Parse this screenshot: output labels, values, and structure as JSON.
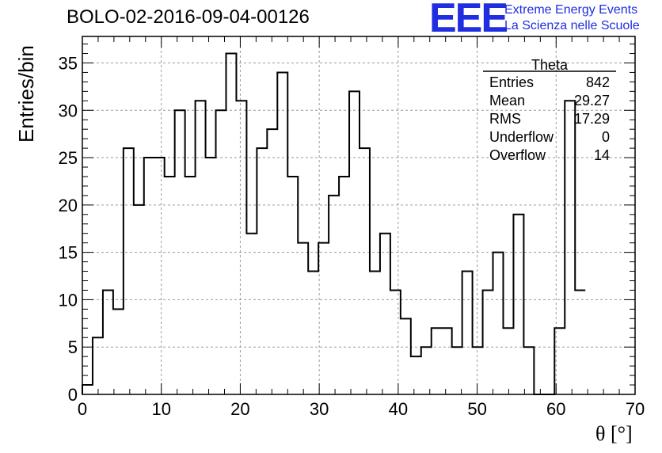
{
  "header": {
    "title": "BOLO-02-2016-09-04-00126",
    "logo_text": "EEE",
    "logo_line1": "Extreme Energy Events",
    "logo_line2": "La Scienza nelle Scuole"
  },
  "chart_data": {
    "type": "bar",
    "style": "step-histogram",
    "xlabel": "θ [°]",
    "ylabel": "Entries/bin",
    "xlim": [
      0,
      70
    ],
    "ylim": [
      0,
      37.8
    ],
    "xticks": [
      0,
      10,
      20,
      30,
      40,
      50,
      60,
      70
    ],
    "yticks": [
      0,
      5,
      10,
      15,
      20,
      25,
      30,
      35
    ],
    "grid": true,
    "bin_width": 1.3,
    "x_start": 0,
    "values": [
      1,
      6,
      11,
      9,
      26,
      20,
      25,
      25,
      23,
      30,
      23,
      31,
      25,
      30,
      36,
      31,
      17,
      26,
      28,
      34,
      23,
      16,
      13,
      16,
      21,
      23,
      32,
      26,
      13,
      17,
      11,
      8,
      4,
      5,
      7,
      7,
      5,
      13,
      5,
      11,
      15,
      7,
      19,
      5,
      0,
      0,
      7,
      31,
      11
    ],
    "stats": {
      "title": "Theta",
      "rows": [
        {
          "label": "Entries",
          "value": "842"
        },
        {
          "label": "Mean",
          "value": "29.27"
        },
        {
          "label": "RMS",
          "value": "17.29"
        },
        {
          "label": "Underflow",
          "value": "0"
        },
        {
          "label": "Overflow",
          "value": "14"
        }
      ]
    }
  }
}
